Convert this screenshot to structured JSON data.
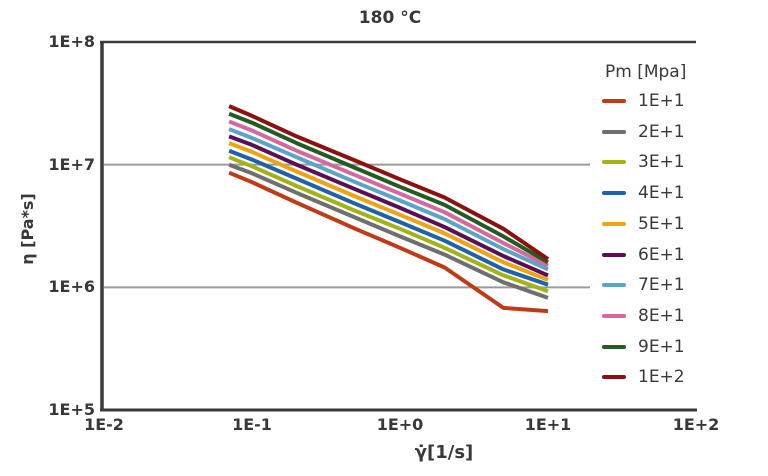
{
  "page": {
    "background": "#ffffff"
  },
  "colors": {
    "axis": "#3a3a3a",
    "grid": "#9b9b9b",
    "text": "#383838",
    "legend_bg": "#ffffff"
  },
  "chart_data": {
    "type": "line",
    "title": "180 °C",
    "xlabel": "γ̇[1/s]",
    "ylabel": "η [Pa*s]",
    "x_scale": "log",
    "y_scale": "log",
    "xlim_labels": [
      "1E-2",
      "1E+2"
    ],
    "ylim_labels": [
      "1E+5",
      "1E+8"
    ],
    "grid": true,
    "legend_position": "right",
    "legend_title": "Pm [Mpa]",
    "x_ticks": [
      {
        "label": "1E-2",
        "value": 0.01
      },
      {
        "label": "1E-1",
        "value": 0.1
      },
      {
        "label": "1E+0",
        "value": 1
      },
      {
        "label": "1E+1",
        "value": 10
      },
      {
        "label": "1E+2",
        "value": 100
      }
    ],
    "y_ticks": [
      {
        "label": "1E+8",
        "value": 100000000
      },
      {
        "label": "1E+7",
        "value": 10000000
      },
      {
        "label": "1E+6",
        "value": 1000000
      },
      {
        "label": "1E+5",
        "value": 100000
      }
    ],
    "x_units": "1/s",
    "y_units": "Pa*s",
    "x": [
      0.07,
      0.1,
      0.2,
      0.5,
      1,
      2,
      5,
      10
    ],
    "series": [
      {
        "name": "1E+1",
        "color": "#c03a18",
        "values": [
          8600000,
          7200000,
          4900000,
          3000000,
          2100000,
          1450000,
          680000,
          640000
        ]
      },
      {
        "name": "2E+1",
        "color": "#6f6f6f",
        "values": [
          10000000,
          8500000,
          5900000,
          3700000,
          2600000,
          1850000,
          1100000,
          820000
        ]
      },
      {
        "name": "3E+1",
        "color": "#a2b414",
        "values": [
          11500000,
          9700000,
          6700000,
          4200000,
          3000000,
          2100000,
          1250000,
          930000
        ]
      },
      {
        "name": "4E+1",
        "color": "#2061ae",
        "values": [
          13000000,
          11000000,
          7700000,
          4800000,
          3400000,
          2400000,
          1400000,
          1050000
        ]
      },
      {
        "name": "5E+1",
        "color": "#eea40e",
        "values": [
          15000000,
          12700000,
          8800000,
          5500000,
          3900000,
          2750000,
          1600000,
          1150000
        ]
      },
      {
        "name": "6E+1",
        "color": "#5c0d58",
        "values": [
          17000000,
          14500000,
          10000000,
          6300000,
          4450000,
          3100000,
          1800000,
          1250000
        ]
      },
      {
        "name": "7E+1",
        "color": "#5aa4c4",
        "values": [
          19500000,
          16500000,
          11500000,
          7200000,
          5100000,
          3600000,
          2050000,
          1400000
        ]
      },
      {
        "name": "8E+1",
        "color": "#d8679f",
        "values": [
          22500000,
          19000000,
          13000000,
          8200000,
          5800000,
          4100000,
          2300000,
          1500000
        ]
      },
      {
        "name": "9E+1",
        "color": "#215c21",
        "values": [
          26000000,
          22000000,
          15000000,
          9400000,
          6600000,
          4700000,
          2600000,
          1600000
        ]
      },
      {
        "name": "1E+2",
        "color": "#8d1010",
        "values": [
          30000000,
          25000000,
          17000000,
          10800000,
          7600000,
          5400000,
          3000000,
          1700000
        ]
      }
    ]
  }
}
